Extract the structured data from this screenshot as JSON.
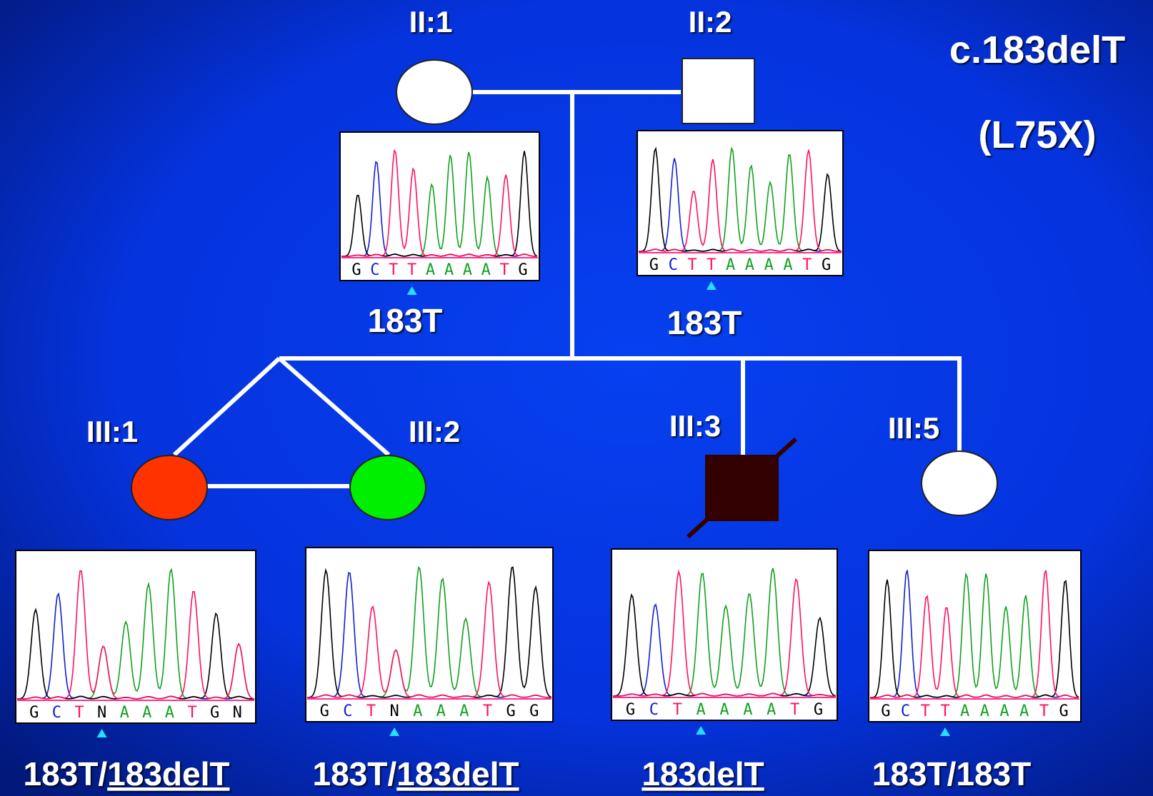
{
  "title": "c.183delT",
  "subtitle": "(L75X)",
  "individuals": [
    {
      "label": "II:1",
      "bases": [
        "G",
        "C",
        "T",
        "T",
        "A",
        "A",
        "A",
        "A",
        "T",
        "G"
      ],
      "genotype": [
        {
          "text": "183T",
          "underline": false
        }
      ]
    },
    {
      "label": "II:2",
      "bases": [
        "G",
        "C",
        "T",
        "T",
        "A",
        "A",
        "A",
        "A",
        "T",
        "G"
      ],
      "genotype": [
        {
          "text": "183T",
          "underline": false
        }
      ]
    },
    {
      "label": "III:1",
      "bases": [
        "G",
        "C",
        "T",
        "N",
        "A",
        "A",
        "A",
        "T",
        "G",
        "N"
      ],
      "genotype": [
        {
          "text": "183T/",
          "underline": false
        },
        {
          "text": "183delT",
          "underline": true
        }
      ]
    },
    {
      "label": "III:2",
      "bases": [
        "G",
        "C",
        "T",
        "N",
        "A",
        "A",
        "A",
        "T",
        "G",
        "G"
      ],
      "genotype": [
        {
          "text": "183T/",
          "underline": false
        },
        {
          "text": "183delT",
          "underline": true
        }
      ]
    },
    {
      "label": "III:3",
      "bases": [
        "G",
        "C",
        "T",
        "A",
        "A",
        "A",
        "A",
        "T",
        "G"
      ],
      "genotype": [
        {
          "text": "183delT",
          "underline": true
        }
      ]
    },
    {
      "label": "III:5",
      "bases": [
        "G",
        "C",
        "T",
        "T",
        "A",
        "A",
        "A",
        "A",
        "T",
        "G"
      ],
      "genotype": [
        {
          "text": "183T/183T",
          "underline": false
        }
      ]
    }
  ]
}
